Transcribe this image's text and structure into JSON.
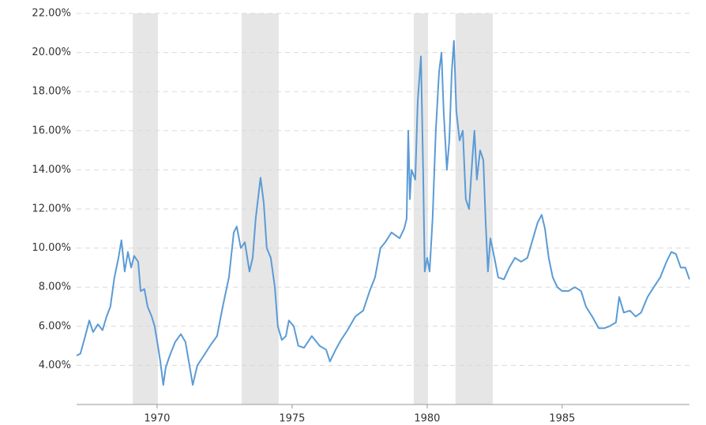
{
  "chart_data": {
    "type": "line",
    "color": "#5b9bd5",
    "recession_color": "#e6e6e6",
    "grid": true,
    "xlim": [
      1967.02,
      1989.71
    ],
    "ylim": [
      2,
      22
    ],
    "xticks": [
      1970,
      1975,
      1980,
      1985
    ],
    "yticks": [
      {
        "value": 4,
        "label": "4.00%"
      },
      {
        "value": 6,
        "label": "6.00%"
      },
      {
        "value": 8,
        "label": "8.00%"
      },
      {
        "value": 10,
        "label": "10.00%"
      },
      {
        "value": 12,
        "label": "12.00%"
      },
      {
        "value": 14,
        "label": "14.00%"
      },
      {
        "value": 16,
        "label": "16.00%"
      },
      {
        "value": 18,
        "label": "18.00%"
      },
      {
        "value": 20,
        "label": "20.00%"
      },
      {
        "value": 22,
        "label": "22.00%"
      }
    ],
    "recessions": [
      [
        1969.1,
        1970.03
      ],
      [
        1973.13,
        1974.5
      ],
      [
        1979.5,
        1980.03
      ],
      [
        1981.05,
        1982.43
      ]
    ],
    "x": [
      1967.02,
      1967.16,
      1967.34,
      1967.49,
      1967.63,
      1967.81,
      1967.98,
      1968.13,
      1968.27,
      1968.42,
      1968.57,
      1968.68,
      1968.8,
      1968.92,
      1969.04,
      1969.15,
      1969.3,
      1969.39,
      1969.53,
      1969.65,
      1969.8,
      1969.91,
      1970.03,
      1970.12,
      1970.23,
      1970.32,
      1970.47,
      1970.67,
      1970.88,
      1971.05,
      1971.2,
      1971.32,
      1971.49,
      1971.73,
      1971.96,
      1972.22,
      1972.43,
      1972.66,
      1972.84,
      1972.95,
      1973.1,
      1973.25,
      1973.42,
      1973.54,
      1973.65,
      1973.83,
      1973.95,
      1974.06,
      1974.21,
      1974.36,
      1974.47,
      1974.62,
      1974.77,
      1974.88,
      1975.06,
      1975.23,
      1975.44,
      1975.73,
      1976.02,
      1976.26,
      1976.4,
      1976.61,
      1976.81,
      1977.05,
      1977.34,
      1977.63,
      1977.87,
      1978.07,
      1978.27,
      1978.45,
      1978.68,
      1978.98,
      1979.15,
      1979.24,
      1979.3,
      1979.36,
      1979.42,
      1979.56,
      1979.65,
      1979.77,
      1979.85,
      1979.91,
      1980.0,
      1980.09,
      1980.2,
      1980.32,
      1980.44,
      1980.53,
      1980.61,
      1980.73,
      1980.82,
      1980.91,
      1980.99,
      1981.08,
      1981.2,
      1981.32,
      1981.43,
      1981.55,
      1981.67,
      1981.75,
      1981.84,
      1981.96,
      1982.08,
      1982.16,
      1982.25,
      1982.34,
      1982.49,
      1982.63,
      1982.84,
      1983.04,
      1983.25,
      1983.48,
      1983.71,
      1983.92,
      1984.09,
      1984.24,
      1984.36,
      1984.5,
      1984.65,
      1984.82,
      1985.0,
      1985.23,
      1985.47,
      1985.7,
      1985.88,
      1986.11,
      1986.35,
      1986.55,
      1986.75,
      1986.99,
      1987.11,
      1987.28,
      1987.51,
      1987.72,
      1987.92,
      1988.16,
      1988.39,
      1988.63,
      1988.86,
      1989.04,
      1989.21,
      1989.39,
      1989.56,
      1989.71
    ],
    "values": [
      4.5,
      4.6,
      5.5,
      6.3,
      5.7,
      6.1,
      5.8,
      6.5,
      7.0,
      8.5,
      9.5,
      10.4,
      8.8,
      9.8,
      9.0,
      9.6,
      9.3,
      7.8,
      7.9,
      7.0,
      6.5,
      6.0,
      5.0,
      4.2,
      3.0,
      3.9,
      4.5,
      5.2,
      5.6,
      5.2,
      4.0,
      3.0,
      4.0,
      4.5,
      5.0,
      5.5,
      7.0,
      8.5,
      10.8,
      11.1,
      10.0,
      10.3,
      8.8,
      9.5,
      11.5,
      13.6,
      12.3,
      10.0,
      9.5,
      8.0,
      6.0,
      5.3,
      5.5,
      6.3,
      6.0,
      5.0,
      4.9,
      5.5,
      5.0,
      4.8,
      4.2,
      4.8,
      5.3,
      5.8,
      6.5,
      6.8,
      7.8,
      8.5,
      10.0,
      10.3,
      10.8,
      10.5,
      11.0,
      11.5,
      16.0,
      12.5,
      14.0,
      13.5,
      17.5,
      19.8,
      14.0,
      8.8,
      9.5,
      8.8,
      11.5,
      16.0,
      19.0,
      20.0,
      17.0,
      14.0,
      15.5,
      19.0,
      20.6,
      17.0,
      15.5,
      16.0,
      12.5,
      12.0,
      14.5,
      16.0,
      13.5,
      15.0,
      14.5,
      11.5,
      8.8,
      10.5,
      9.5,
      8.5,
      8.4,
      9.0,
      9.5,
      9.3,
      9.5,
      10.5,
      11.3,
      11.7,
      11.0,
      9.5,
      8.5,
      8.0,
      7.8,
      7.8,
      8.0,
      7.8,
      7.0,
      6.5,
      5.9,
      5.9,
      6.0,
      6.2,
      7.5,
      6.7,
      6.8,
      6.5,
      6.7,
      7.5,
      8.0,
      8.5,
      9.3,
      9.8,
      9.7,
      9.0,
      9.0,
      8.4
    ]
  }
}
